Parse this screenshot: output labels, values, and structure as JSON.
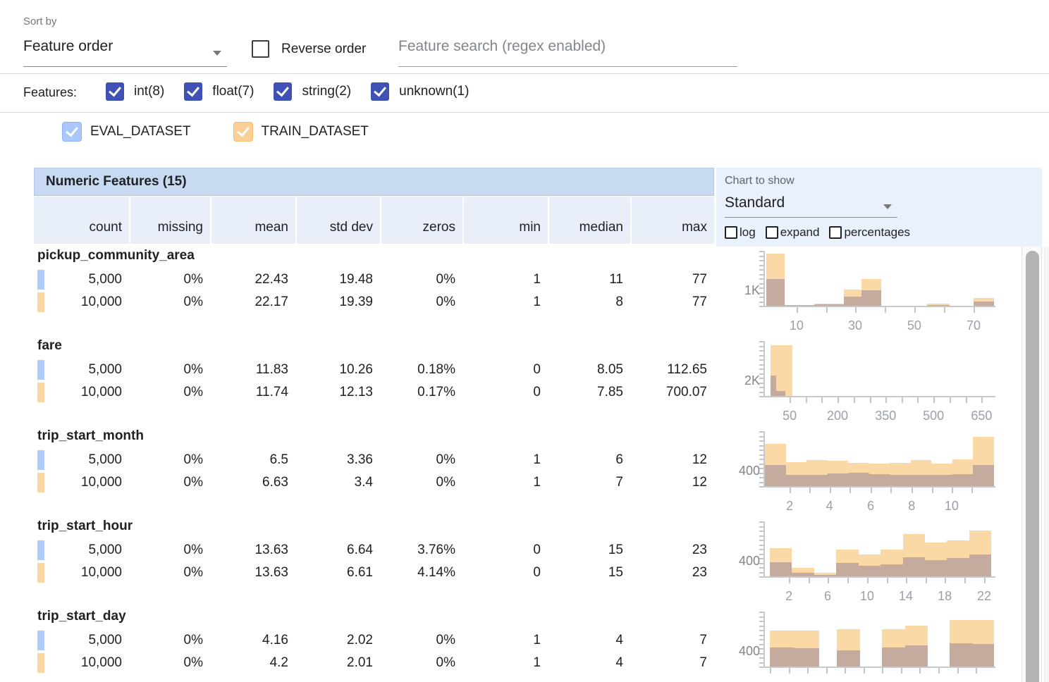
{
  "toolbar": {
    "sort_by_label": "Sort by",
    "sort_value": "Feature order",
    "reverse_label": "Reverse order",
    "search_placeholder": "Feature search (regex enabled)"
  },
  "filters": {
    "label": "Features:",
    "checkbox_color": "#3f51b5",
    "types": [
      {
        "label": "int(8)",
        "checked": true
      },
      {
        "label": "float(7)",
        "checked": true
      },
      {
        "label": "string(2)",
        "checked": true
      },
      {
        "label": "unknown(1)",
        "checked": true
      }
    ]
  },
  "datasets": [
    {
      "name": "EVAL_DATASET",
      "checked": true,
      "fill": "#a9c7fa",
      "border": "#8fb4f4"
    },
    {
      "name": "TRAIN_DATASET",
      "checked": true,
      "fill": "#fbd096",
      "border": "#f4c078"
    }
  ],
  "table": {
    "title": "Numeric Features (15)",
    "columns": [
      "count",
      "missing",
      "mean",
      "std dev",
      "zeros",
      "min",
      "median",
      "max"
    ],
    "features": [
      {
        "name": "pickup_community_area",
        "rows": [
          {
            "dataset": "EVAL_DATASET",
            "values": [
              "5,000",
              "0%",
              "22.43",
              "19.48",
              "0%",
              "1",
              "11",
              "77"
            ]
          },
          {
            "dataset": "TRAIN_DATASET",
            "values": [
              "10,000",
              "0%",
              "22.17",
              "19.39",
              "0%",
              "1",
              "8",
              "77"
            ]
          }
        ]
      },
      {
        "name": "fare",
        "rows": [
          {
            "dataset": "EVAL_DATASET",
            "values": [
              "5,000",
              "0%",
              "11.83",
              "10.26",
              "0.18%",
              "0",
              "8.05",
              "112.65"
            ]
          },
          {
            "dataset": "TRAIN_DATASET",
            "values": [
              "10,000",
              "0%",
              "11.74",
              "12.13",
              "0.17%",
              "0",
              "7.85",
              "700.07"
            ]
          }
        ]
      },
      {
        "name": "trip_start_month",
        "rows": [
          {
            "dataset": "EVAL_DATASET",
            "values": [
              "5,000",
              "0%",
              "6.5",
              "3.36",
              "0%",
              "1",
              "6",
              "12"
            ]
          },
          {
            "dataset": "TRAIN_DATASET",
            "values": [
              "10,000",
              "0%",
              "6.63",
              "3.4",
              "0%",
              "1",
              "7",
              "12"
            ]
          }
        ]
      },
      {
        "name": "trip_start_hour",
        "rows": [
          {
            "dataset": "EVAL_DATASET",
            "values": [
              "5,000",
              "0%",
              "13.63",
              "6.64",
              "3.76%",
              "0",
              "15",
              "23"
            ]
          },
          {
            "dataset": "TRAIN_DATASET",
            "values": [
              "10,000",
              "0%",
              "13.63",
              "6.61",
              "4.14%",
              "0",
              "15",
              "23"
            ]
          }
        ]
      },
      {
        "name": "trip_start_day",
        "rows": [
          {
            "dataset": "EVAL_DATASET",
            "values": [
              "5,000",
              "0%",
              "4.16",
              "2.02",
              "0%",
              "1",
              "4",
              "7"
            ]
          },
          {
            "dataset": "TRAIN_DATASET",
            "values": [
              "10,000",
              "0%",
              "4.2",
              "2.01",
              "0%",
              "1",
              "4",
              "7"
            ]
          }
        ]
      }
    ]
  },
  "chart_panel": {
    "label": "Chart to show",
    "selected": "Standard",
    "toggles": [
      "log",
      "expand",
      "percentages"
    ]
  },
  "colors": {
    "bar_train": "#fbd9a6",
    "bar_overlap": "#c4ab9e",
    "eval_marker": "#aecbfa",
    "train_marker": "#fad8a4",
    "table_band_bg": "#c7daf1",
    "subheader_bg": "#e9eff8",
    "panel_bg": "#e9f1fd",
    "type_checkbox": "#3f51b5"
  },
  "chart_data": [
    {
      "type": "bar",
      "name": "pickup_community_area",
      "ylabel": "1K",
      "x_range": [
        1,
        77
      ],
      "series": [
        {
          "name": "TRAIN_DATASET"
        },
        {
          "name": "EVAL_DATASET (overlap)"
        }
      ],
      "x_ticks": [
        {
          "x": 0.138,
          "label": "10"
        },
        {
          "x": 0.268,
          "label": ""
        },
        {
          "x": 0.394,
          "label": "30"
        },
        {
          "x": 0.523,
          "label": ""
        },
        {
          "x": 0.652,
          "label": "50"
        },
        {
          "x": 0.782,
          "label": ""
        },
        {
          "x": 0.911,
          "label": "70"
        }
      ],
      "bars": [
        {
          "x0": 0.006,
          "x1": 0.086,
          "train": 0.95,
          "overlap": 0.49
        },
        {
          "x0": 0.086,
          "x1": 0.215,
          "train": 0.015,
          "overlap": 0.008
        },
        {
          "x0": 0.215,
          "x1": 0.345,
          "train": 0.04,
          "overlap": 0.02
        },
        {
          "x0": 0.345,
          "x1": 0.42,
          "train": 0.29,
          "overlap": 0.17
        },
        {
          "x0": 0.42,
          "x1": 0.508,
          "train": 0.49,
          "overlap": 0.28
        },
        {
          "x0": 0.707,
          "x1": 0.806,
          "train": 0.035,
          "overlap": 0.012
        },
        {
          "x0": 0.911,
          "x1": 1.0,
          "train": 0.14,
          "overlap": 0.08
        }
      ]
    },
    {
      "type": "bar",
      "name": "fare",
      "ylabel": "2K",
      "x_range": [
        0,
        700
      ],
      "series": [
        {
          "name": "TRAIN_DATASET"
        },
        {
          "name": "EVAL_DATASET (overlap)"
        }
      ],
      "x_ticks": [
        {
          "x": 0.108,
          "label": "50"
        },
        {
          "x": 0.178,
          "label": ""
        },
        {
          "x": 0.247,
          "label": ""
        },
        {
          "x": 0.317,
          "label": "200"
        },
        {
          "x": 0.387,
          "label": ""
        },
        {
          "x": 0.457,
          "label": ""
        },
        {
          "x": 0.527,
          "label": "350"
        },
        {
          "x": 0.597,
          "label": ""
        },
        {
          "x": 0.666,
          "label": ""
        },
        {
          "x": 0.736,
          "label": "500"
        },
        {
          "x": 0.806,
          "label": ""
        },
        {
          "x": 0.876,
          "label": ""
        },
        {
          "x": 0.946,
          "label": "650"
        }
      ],
      "bars": [
        {
          "x0": 0.025,
          "x1": 0.12,
          "train": 0.92,
          "overlap": 0
        },
        {
          "x0": 0.025,
          "x1": 0.048,
          "train": 0,
          "overlap": 0.37
        },
        {
          "x0": 0.048,
          "x1": 0.09,
          "train": 0,
          "overlap": 0.09
        }
      ]
    },
    {
      "type": "bar",
      "name": "trip_start_month",
      "ylabel": "400",
      "x_range": [
        1,
        12
      ],
      "series": [
        {
          "name": "TRAIN_DATASET"
        },
        {
          "name": "EVAL_DATASET (overlap)"
        }
      ],
      "x_ticks": [
        {
          "x": 0.108,
          "label": "2"
        },
        {
          "x": 0.194,
          "label": ""
        },
        {
          "x": 0.282,
          "label": "4"
        },
        {
          "x": 0.369,
          "label": ""
        },
        {
          "x": 0.462,
          "label": "6"
        },
        {
          "x": 0.548,
          "label": ""
        },
        {
          "x": 0.641,
          "label": "8"
        },
        {
          "x": 0.729,
          "label": ""
        },
        {
          "x": 0.815,
          "label": "10"
        },
        {
          "x": 0.902,
          "label": ""
        }
      ],
      "bars": [
        {
          "x0": 0.0,
          "x1": 0.091,
          "train": 0.77,
          "overlap": 0.39
        },
        {
          "x0": 0.091,
          "x1": 0.182,
          "train": 0.44,
          "overlap": 0.21
        },
        {
          "x0": 0.182,
          "x1": 0.273,
          "train": 0.47,
          "overlap": 0.21
        },
        {
          "x0": 0.273,
          "x1": 0.364,
          "train": 0.46,
          "overlap": 0.23
        },
        {
          "x0": 0.364,
          "x1": 0.455,
          "train": 0.42,
          "overlap": 0.24
        },
        {
          "x0": 0.455,
          "x1": 0.545,
          "train": 0.41,
          "overlap": 0.22
        },
        {
          "x0": 0.545,
          "x1": 0.636,
          "train": 0.42,
          "overlap": 0.21
        },
        {
          "x0": 0.636,
          "x1": 0.727,
          "train": 0.48,
          "overlap": 0.21
        },
        {
          "x0": 0.727,
          "x1": 0.818,
          "train": 0.41,
          "overlap": 0.2
        },
        {
          "x0": 0.818,
          "x1": 0.909,
          "train": 0.49,
          "overlap": 0.22
        },
        {
          "x0": 0.909,
          "x1": 1.0,
          "train": 0.9,
          "overlap": 0.39
        }
      ]
    },
    {
      "type": "bar",
      "name": "trip_start_hour",
      "ylabel": "400",
      "x_range": [
        0,
        23
      ],
      "series": [
        {
          "name": "TRAIN_DATASET"
        },
        {
          "name": "EVAL_DATASET (overlap)"
        }
      ],
      "x_ticks": [
        {
          "x": 0.105,
          "label": "2"
        },
        {
          "x": 0.19,
          "label": ""
        },
        {
          "x": 0.274,
          "label": "6"
        },
        {
          "x": 0.36,
          "label": ""
        },
        {
          "x": 0.446,
          "label": "10"
        },
        {
          "x": 0.532,
          "label": ""
        },
        {
          "x": 0.615,
          "label": "14"
        },
        {
          "x": 0.7,
          "label": ""
        },
        {
          "x": 0.785,
          "label": "18"
        },
        {
          "x": 0.87,
          "label": ""
        },
        {
          "x": 0.957,
          "label": "22"
        }
      ],
      "bars": [
        {
          "x0": 0.02,
          "x1": 0.117,
          "train": 0.51,
          "overlap": 0.26
        },
        {
          "x0": 0.117,
          "x1": 0.214,
          "train": 0.15,
          "overlap": 0.06
        },
        {
          "x0": 0.214,
          "x1": 0.311,
          "train": 0.06,
          "overlap": 0.03
        },
        {
          "x0": 0.311,
          "x1": 0.408,
          "train": 0.49,
          "overlap": 0.24
        },
        {
          "x0": 0.408,
          "x1": 0.505,
          "train": 0.4,
          "overlap": 0.19
        },
        {
          "x0": 0.505,
          "x1": 0.602,
          "train": 0.49,
          "overlap": 0.22
        },
        {
          "x0": 0.602,
          "x1": 0.699,
          "train": 0.77,
          "overlap": 0.35
        },
        {
          "x0": 0.699,
          "x1": 0.795,
          "train": 0.62,
          "overlap": 0.29
        },
        {
          "x0": 0.795,
          "x1": 0.892,
          "train": 0.66,
          "overlap": 0.33
        },
        {
          "x0": 0.892,
          "x1": 0.989,
          "train": 0.83,
          "overlap": 0.4
        }
      ]
    },
    {
      "type": "bar",
      "name": "trip_start_day",
      "ylabel": "400",
      "x_range": [
        1,
        7
      ],
      "series": [
        {
          "name": "TRAIN_DATASET"
        },
        {
          "name": "EVAL_DATASET (overlap)"
        }
      ],
      "x_ticks": [
        {
          "x": 0.022,
          "label": ""
        },
        {
          "x": 0.104,
          "label": ""
        },
        {
          "x": 0.185,
          "label": ""
        },
        {
          "x": 0.267,
          "label": ""
        },
        {
          "x": 0.349,
          "label": ""
        },
        {
          "x": 0.43,
          "label": ""
        },
        {
          "x": 0.512,
          "label": ""
        },
        {
          "x": 0.594,
          "label": ""
        },
        {
          "x": 0.675,
          "label": ""
        },
        {
          "x": 0.757,
          "label": ""
        },
        {
          "x": 0.839,
          "label": ""
        },
        {
          "x": 0.92,
          "label": ""
        }
      ],
      "bars": [
        {
          "x0": 0.022,
          "x1": 0.13,
          "train": 0.65,
          "overlap": 0.34
        },
        {
          "x0": 0.13,
          "x1": 0.237,
          "train": 0.65,
          "overlap": 0.33
        },
        {
          "x0": 0.314,
          "x1": 0.415,
          "train": 0.68,
          "overlap": 0.3
        },
        {
          "x0": 0.511,
          "x1": 0.611,
          "train": 0.68,
          "overlap": 0.35
        },
        {
          "x0": 0.611,
          "x1": 0.711,
          "train": 0.75,
          "overlap": 0.38
        },
        {
          "x0": 0.806,
          "x1": 0.905,
          "train": 0.85,
          "overlap": 0.42
        },
        {
          "x0": 0.905,
          "x1": 1.0,
          "train": 0.85,
          "overlap": 0.41
        }
      ]
    }
  ]
}
